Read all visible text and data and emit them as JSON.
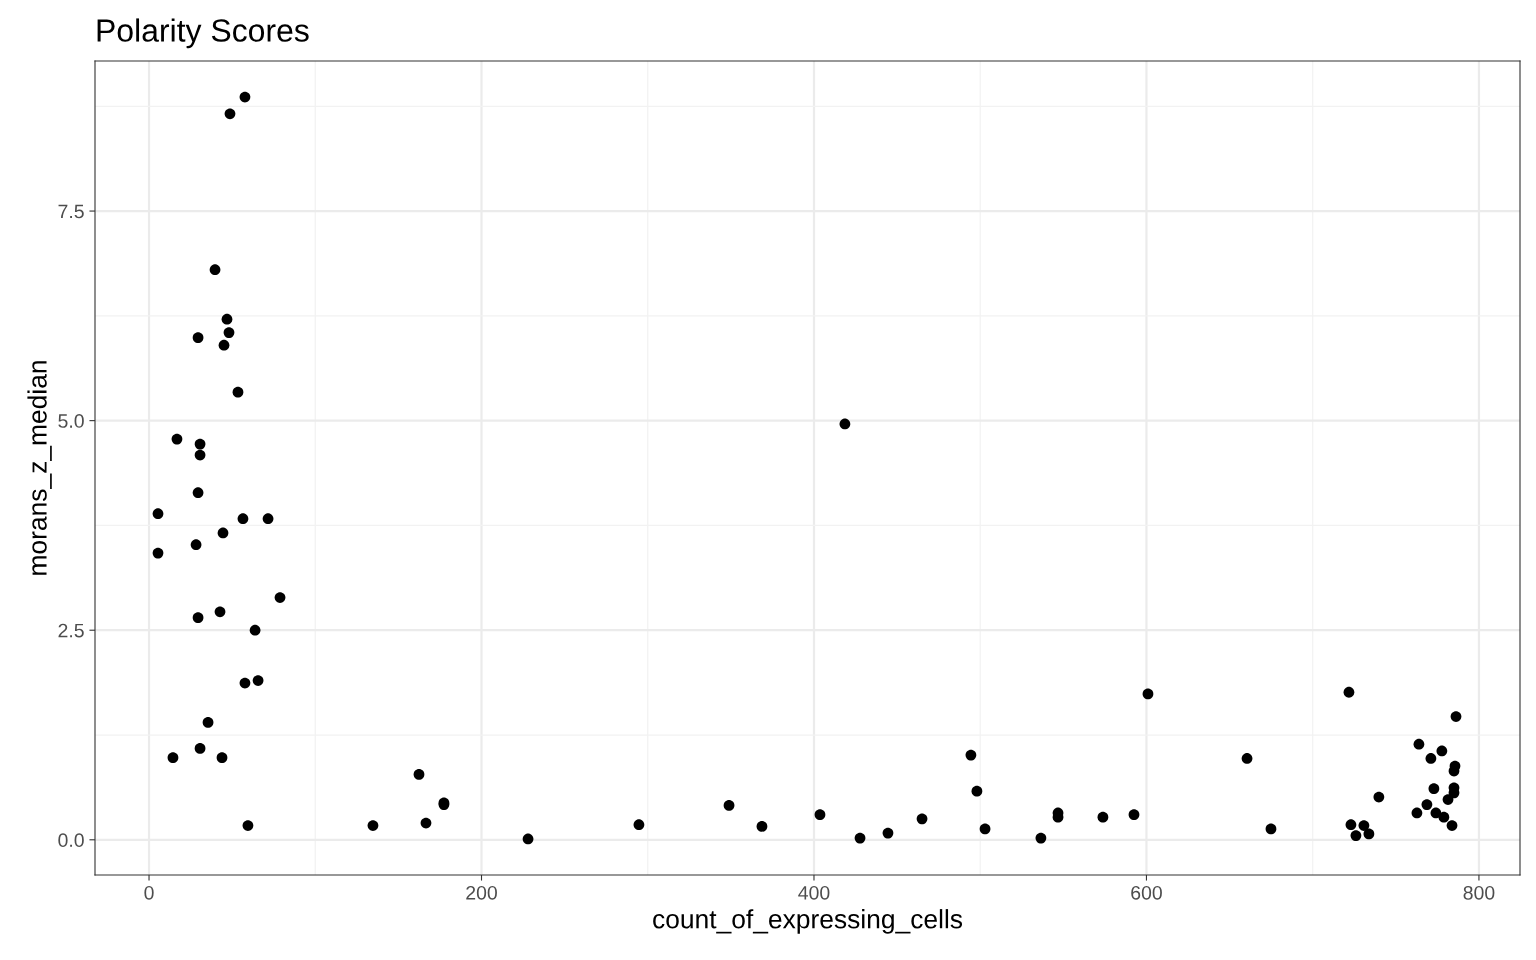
{
  "chart_data": {
    "type": "scatter",
    "title": "Polarity Scores",
    "xlabel": "count_of_expressing_cells",
    "ylabel": "morans_z_median",
    "xlim": [
      -32.5,
      824.7
    ],
    "ylim": [
      -0.42,
      9.29
    ],
    "xticks": [
      0,
      200,
      400,
      600,
      800
    ],
    "yticks": [
      {
        "value": 0,
        "label": "0.0"
      },
      {
        "value": 2.5,
        "label": "2.5"
      },
      {
        "value": 5,
        "label": "5.0"
      },
      {
        "value": 7.5,
        "label": "7.5"
      }
    ],
    "grid": true,
    "marker": "circle",
    "series": [
      {
        "color": "#000000",
        "x": [
          57.7,
          48.7,
          39.7,
          46.9,
          48.1,
          29.5,
          45.1,
          53.5,
          16.8,
          418.6,
          30.7,
          30.7,
          29.5,
          5.4,
          56.5,
          71.6,
          5.4,
          44.5,
          28.3,
          78.8,
          42.7,
          29.5,
          63.8,
          57.7,
          65.6,
          35.5,
          14.4,
          30.7,
          43.9,
          59.5,
          134.7,
          162.4,
          166.6,
          177.4,
          177.4,
          228.0,
          294.7,
          348.9,
          368.7,
          403.6,
          427.7,
          444.5,
          465.0,
          494.4,
          498.0,
          502.9,
          536.5,
          546.8,
          546.8,
          573.8,
          592.5,
          600.9,
          660.5,
          674.9,
          721.8,
          723.0,
          726.0,
          730.8,
          733.8,
          739.8,
          762.7,
          763.9,
          768.7,
          771.1,
          772.9,
          774.1,
          777.7,
          778.9,
          781.4,
          783.8,
          785.0,
          785.6,
          785.0,
          785.0,
          786.2
        ],
        "values": [
          8.86,
          8.66,
          6.8,
          6.21,
          6.05,
          5.99,
          5.9,
          5.34,
          4.78,
          4.96,
          4.72,
          4.59,
          4.14,
          3.89,
          3.83,
          3.83,
          3.42,
          3.66,
          3.52,
          2.89,
          2.72,
          2.65,
          2.5,
          1.87,
          1.9,
          1.4,
          0.98,
          1.09,
          0.98,
          0.17,
          0.17,
          0.78,
          0.2,
          0.42,
          0.44,
          0.01,
          0.18,
          0.41,
          0.16,
          0.3,
          0.02,
          0.08,
          0.25,
          1.01,
          0.58,
          0.13,
          0.02,
          0.32,
          0.27,
          0.27,
          0.3,
          1.74,
          0.97,
          0.13,
          1.76,
          0.18,
          0.05,
          0.17,
          0.07,
          0.51,
          0.32,
          1.14,
          0.42,
          0.97,
          0.61,
          0.32,
          1.06,
          0.27,
          0.48,
          0.17,
          0.82,
          0.88,
          0.56,
          0.62,
          1.47
        ]
      }
    ]
  }
}
